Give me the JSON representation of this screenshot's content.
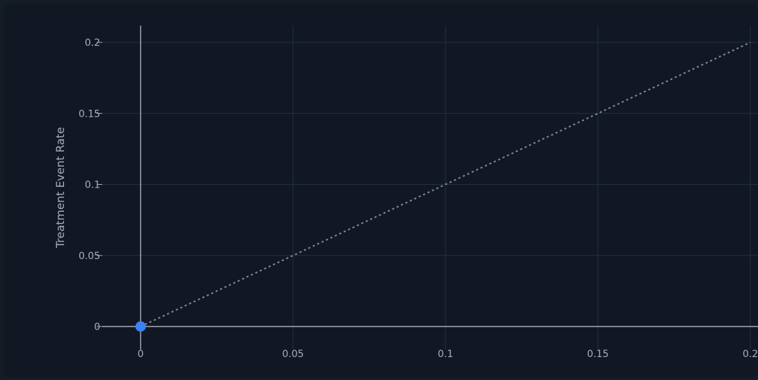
{
  "chart_data": {
    "type": "scatter",
    "ylabel": "Treatment Event Rate",
    "xlabel": "",
    "xlim": [
      0,
      0.2
    ],
    "ylim": [
      0,
      0.2
    ],
    "x_ticks": [
      "0",
      "0.05",
      "0.1",
      "0.15",
      "0.2"
    ],
    "y_ticks": [
      "0",
      "0.05",
      "0.1",
      "0.15",
      "0.2"
    ],
    "grid": true,
    "series": [
      {
        "points": [
          {
            "x": 0,
            "y": 0
          }
        ],
        "color": "#3b82f6"
      }
    ],
    "reference_line": {
      "from": [
        0,
        0
      ],
      "to": [
        0.2,
        0.2
      ],
      "style": "dotted",
      "color": "#7d8594"
    }
  }
}
